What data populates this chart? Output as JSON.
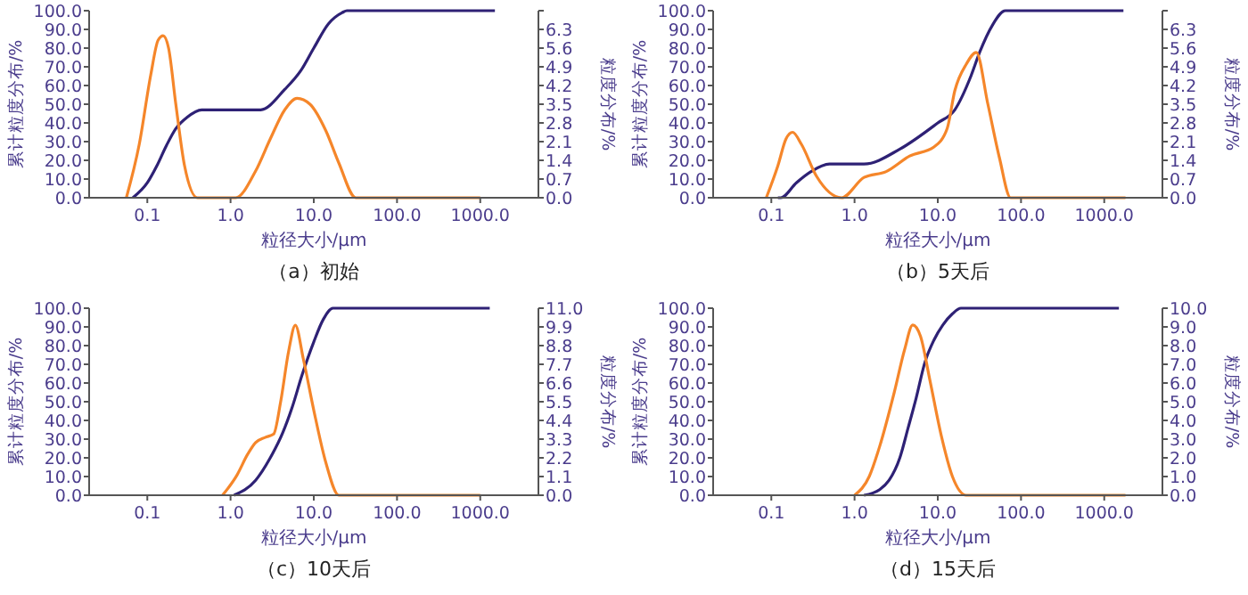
{
  "chart_data": [
    {
      "type": "line",
      "title": "（a）初始",
      "xlabel": "粒径大小/μm",
      "ylabel": "累计粒度分布/%",
      "y2label": "粒度分布/%",
      "log": "x",
      "xlim": [
        0.02,
        5000
      ],
      "xticks": [
        {
          "value": 0.1,
          "label": "0.1"
        },
        {
          "value": 1,
          "label": "1.0"
        },
        {
          "value": 10,
          "label": "10.0"
        },
        {
          "value": 100,
          "label": "100.0"
        },
        {
          "value": 1000,
          "label": "1000.0"
        }
      ],
      "ylim": [
        0,
        100
      ],
      "yticks": [
        {
          "value": 0,
          "label": "0.0"
        },
        {
          "value": 10,
          "label": "10.0"
        },
        {
          "value": 20,
          "label": "20.0"
        },
        {
          "value": 30,
          "label": "30.0"
        },
        {
          "value": 40,
          "label": "40.0"
        },
        {
          "value": 50,
          "label": "50.0"
        },
        {
          "value": 60,
          "label": "60.0"
        },
        {
          "value": 70,
          "label": "70.0"
        },
        {
          "value": 80,
          "label": "80.0"
        },
        {
          "value": 90,
          "label": "90.0"
        },
        {
          "value": 100,
          "label": "100.0"
        }
      ],
      "y2lim": [
        0,
        7
      ],
      "y2ticks": [
        {
          "value": 0,
          "label": "0.0"
        },
        0.7,
        1.4,
        2.1,
        2.8,
        3.5,
        4.2,
        4.9,
        5.6,
        6.3,
        {
          "value": 7,
          "label": null
        }
      ],
      "series": [
        {
          "color": "#2e2175",
          "x": [
            0.067,
            0.1,
            0.13,
            0.17,
            0.22,
            0.3,
            0.45,
            2.3,
            4.5,
            7,
            10,
            15,
            22,
            25,
            1500
          ],
          "values": [
            0,
            8,
            17,
            28,
            37,
            43,
            47,
            47,
            58,
            68,
            80,
            93,
            99,
            100,
            100
          ]
        },
        {
          "color": "#f5862a",
          "axis": "y2",
          "x": [
            0.056,
            0.08,
            0.11,
            0.135,
            0.155,
            0.18,
            0.22,
            0.28,
            0.4,
            1.15,
            2,
            3,
            4.5,
            6.3,
            9,
            14,
            20,
            32,
            1000
          ],
          "values": [
            0,
            2.0,
            4.6,
            5.9,
            6.06,
            5.6,
            3.5,
            1.2,
            0,
            0,
            1.0,
            2.2,
            3.3,
            3.72,
            3.5,
            2.5,
            1.3,
            0,
            0
          ]
        }
      ]
    },
    {
      "type": "line",
      "title": "（b）5天后",
      "xlabel": "粒径大小/μm",
      "ylabel": "累计粒度分布/%",
      "y2label": "粒度分布/%",
      "log": "x",
      "xlim": [
        0.02,
        5000
      ],
      "xticks": [
        {
          "value": 0.1,
          "label": "0.1"
        },
        {
          "value": 1,
          "label": "1.0"
        },
        {
          "value": 10,
          "label": "10.0"
        },
        {
          "value": 100,
          "label": "100.0"
        },
        {
          "value": 1000,
          "label": "1000.0"
        }
      ],
      "ylim": [
        0,
        100
      ],
      "yticks": [
        {
          "value": 0,
          "label": "0.0"
        },
        {
          "value": 10,
          "label": "10.0"
        },
        {
          "value": 20,
          "label": "20.0"
        },
        {
          "value": 30,
          "label": "30.0"
        },
        {
          "value": 40,
          "label": "40.0"
        },
        {
          "value": 50,
          "label": "50.0"
        },
        {
          "value": 60,
          "label": "60.0"
        },
        {
          "value": 70,
          "label": "70.0"
        },
        {
          "value": 80,
          "label": "80.0"
        },
        {
          "value": 90,
          "label": "90.0"
        },
        {
          "value": 100,
          "label": "100.0"
        }
      ],
      "y2lim": [
        0,
        7
      ],
      "y2ticks": [
        {
          "value": 0,
          "label": "0.0"
        },
        0.7,
        1.4,
        2.1,
        2.8,
        3.5,
        4.2,
        4.9,
        5.6,
        6.3,
        {
          "value": 7,
          "label": null
        }
      ],
      "series": [
        {
          "color": "#2e2175",
          "x": [
            0.12,
            0.13,
            0.2,
            0.3,
            0.5,
            1.3,
            3.5,
            10,
            16,
            25,
            32,
            45,
            65,
            1700
          ],
          "values": [
            0,
            0,
            8,
            14,
            18,
            18,
            26,
            40,
            47,
            65,
            78,
            92,
            100,
            100
          ]
        },
        {
          "color": "#f5862a",
          "axis": "y2",
          "x": [
            0.087,
            0.12,
            0.15,
            0.18,
            0.23,
            0.35,
            0.7,
            1.3,
            2.4,
            4.6,
            9,
            13,
            16,
            22,
            29,
            40,
            55,
            75,
            1800
          ],
          "values": [
            0,
            1.2,
            2.2,
            2.45,
            2.0,
            0.8,
            0,
            0.76,
            0.98,
            1.56,
            1.9,
            2.6,
            4.0,
            5.0,
            5.44,
            3.5,
            1.5,
            0,
            0
          ]
        }
      ]
    },
    {
      "type": "line",
      "title": "（c）10天后",
      "xlabel": "粒径大小/μm",
      "ylabel": "累计粒度分布/%",
      "y2label": "粒度分布/%",
      "log": "x",
      "xlim": [
        0.02,
        5000
      ],
      "xticks": [
        {
          "value": 0.1,
          "label": "0.1"
        },
        {
          "value": 1,
          "label": "1.0"
        },
        {
          "value": 10,
          "label": "10.0"
        },
        {
          "value": 100,
          "label": "100.0"
        },
        {
          "value": 1000,
          "label": "1000.0"
        }
      ],
      "ylim": [
        0,
        100
      ],
      "yticks": [
        {
          "value": 0,
          "label": "0.0"
        },
        {
          "value": 10,
          "label": "10.0"
        },
        {
          "value": 20,
          "label": "20.0"
        },
        {
          "value": 30,
          "label": "30.0"
        },
        {
          "value": 40,
          "label": "40.0"
        },
        {
          "value": 50,
          "label": "50.0"
        },
        {
          "value": 60,
          "label": "60.0"
        },
        {
          "value": 70,
          "label": "70.0"
        },
        {
          "value": 80,
          "label": "80.0"
        },
        {
          "value": 90,
          "label": "90.0"
        },
        {
          "value": 100,
          "label": "100.0"
        }
      ],
      "y2lim": [
        0,
        11
      ],
      "y2ticks": [
        {
          "value": 0,
          "label": "0.0"
        },
        1.1,
        2.2,
        3.3,
        4.4,
        5.5,
        6.6,
        7.7,
        8.8,
        9.9,
        {
          "value": 11,
          "label": "11.0"
        }
      ],
      "series": [
        {
          "color": "#2e2175",
          "x": [
            1.1,
            2,
            3,
            4.2,
            5.5,
            7.2,
            10,
            13,
            17,
            1300
          ],
          "values": [
            0,
            8,
            20,
            33,
            47,
            64,
            82,
            94,
            100,
            100
          ]
        },
        {
          "color": "#f5862a",
          "axis": "y2",
          "x": [
            0.8,
            1.2,
            1.6,
            2,
            2.6,
            3.3,
            4,
            5,
            6,
            7.5,
            10,
            14,
            20,
            1000
          ],
          "values": [
            0,
            1.2,
            2.4,
            3.1,
            3.4,
            3.6,
            5.5,
            8.5,
            10.0,
            8.0,
            5.0,
            1.9,
            0,
            0
          ]
        }
      ]
    },
    {
      "type": "line",
      "title": "（d）15天后",
      "xlabel": "粒径大小/μm",
      "ylabel": "累计粒度分布/%",
      "y2label": "粒度分布/%",
      "log": "x",
      "xlim": [
        0.02,
        5000
      ],
      "xticks": [
        {
          "value": 0.1,
          "label": "0.1"
        },
        {
          "value": 1,
          "label": "1.0"
        },
        {
          "value": 10,
          "label": "10.0"
        },
        {
          "value": 100,
          "label": "100.0"
        },
        {
          "value": 1000,
          "label": "1000.0"
        }
      ],
      "ylim": [
        0,
        100
      ],
      "yticks": [
        {
          "value": 0,
          "label": "0.0"
        },
        {
          "value": 10,
          "label": "10.0"
        },
        {
          "value": 20,
          "label": "20.0"
        },
        {
          "value": 30,
          "label": "30.0"
        },
        {
          "value": 40,
          "label": "40.0"
        },
        {
          "value": 50,
          "label": "50.0"
        },
        {
          "value": 60,
          "label": "60.0"
        },
        {
          "value": 70,
          "label": "70.0"
        },
        {
          "value": 80,
          "label": "80.0"
        },
        {
          "value": 90,
          "label": "90.0"
        },
        {
          "value": 100,
          "label": "100.0"
        }
      ],
      "y2lim": [
        0,
        10
      ],
      "y2ticks": [
        {
          "value": 0,
          "label": "0.0"
        },
        {
          "value": 1,
          "label": "1.0"
        },
        {
          "value": 2,
          "label": "2.0"
        },
        {
          "value": 3,
          "label": "3.0"
        },
        {
          "value": 4,
          "label": "4.0"
        },
        {
          "value": 5,
          "label": "5.0"
        },
        {
          "value": 6,
          "label": "6.0"
        },
        {
          "value": 7,
          "label": "7.0"
        },
        {
          "value": 8,
          "label": "8.0"
        },
        {
          "value": 9,
          "label": "9.0"
        },
        {
          "value": 10,
          "label": "10.0"
        }
      ],
      "series": [
        {
          "color": "#2e2175",
          "x": [
            1.3,
            2,
            2.6,
            3.5,
            4.4,
            5.5,
            7,
            9,
            11.5,
            15,
            19,
            1500
          ],
          "values": [
            0,
            3,
            8,
            20,
            36,
            52,
            71,
            83,
            91,
            97,
            100,
            100
          ]
        },
        {
          "color": "#f5862a",
          "axis": "y2",
          "x": [
            1.0,
            1.5,
            2,
            3,
            4,
            5,
            6.2,
            8,
            11,
            15,
            22,
            1800
          ],
          "values": [
            0,
            1.0,
            2.6,
            5.5,
            7.8,
            9.1,
            8.5,
            6.2,
            3.2,
            1.0,
            0,
            0
          ]
        }
      ]
    }
  ]
}
